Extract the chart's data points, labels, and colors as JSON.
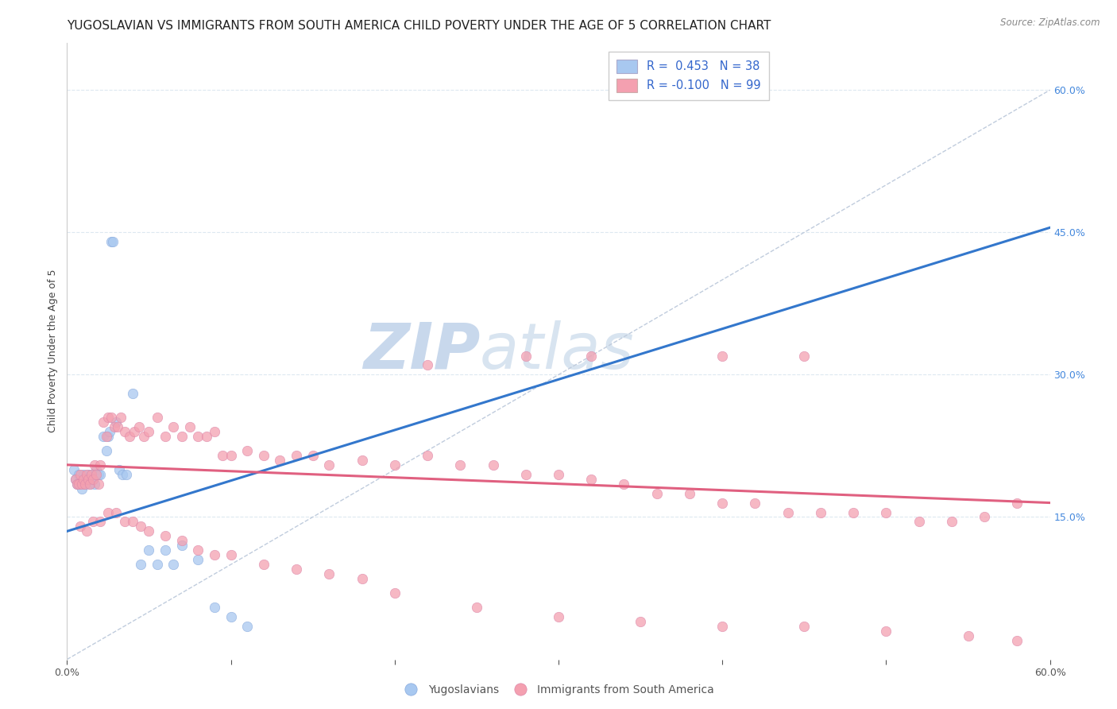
{
  "title": "YUGOSLAVIAN VS IMMIGRANTS FROM SOUTH AMERICA CHILD POVERTY UNDER THE AGE OF 5 CORRELATION CHART",
  "source": "Source: ZipAtlas.com",
  "ylabel": "Child Poverty Under the Age of 5",
  "y_ticks_right": [
    0.15,
    0.3,
    0.45,
    0.6
  ],
  "y_tick_labels_right": [
    "15.0%",
    "30.0%",
    "45.0%",
    "60.0%"
  ],
  "xlim": [
    0.0,
    0.6
  ],
  "ylim": [
    0.0,
    0.65
  ],
  "blue_R": 0.453,
  "blue_N": 38,
  "pink_R": -0.1,
  "pink_N": 99,
  "blue_color": "#a8c8f0",
  "pink_color": "#f4a0b0",
  "blue_line_color": "#3377cc",
  "pink_line_color": "#e06080",
  "bg_color": "#ffffff",
  "watermark_color": "#d8e8f5",
  "blue_line_x0": 0.0,
  "blue_line_y0": 0.135,
  "blue_line_x1": 0.6,
  "blue_line_y1": 0.455,
  "pink_line_x0": 0.0,
  "pink_line_y0": 0.205,
  "pink_line_x1": 0.6,
  "pink_line_y1": 0.165,
  "dash_line_x0": 0.0,
  "dash_line_y0": 0.0,
  "dash_line_x1": 0.6,
  "dash_line_y1": 0.6,
  "blue_scatter_x": [
    0.004,
    0.005,
    0.006,
    0.007,
    0.008,
    0.009,
    0.01,
    0.011,
    0.012,
    0.013,
    0.014,
    0.015,
    0.016,
    0.017,
    0.018,
    0.019,
    0.02,
    0.022,
    0.024,
    0.025,
    0.026,
    0.027,
    0.028,
    0.03,
    0.032,
    0.034,
    0.036,
    0.04,
    0.045,
    0.05,
    0.055,
    0.06,
    0.065,
    0.07,
    0.08,
    0.09,
    0.1,
    0.11
  ],
  "blue_scatter_y": [
    0.2,
    0.19,
    0.185,
    0.195,
    0.185,
    0.18,
    0.195,
    0.185,
    0.19,
    0.195,
    0.185,
    0.195,
    0.19,
    0.185,
    0.2,
    0.195,
    0.195,
    0.235,
    0.22,
    0.235,
    0.24,
    0.44,
    0.44,
    0.25,
    0.2,
    0.195,
    0.195,
    0.28,
    0.1,
    0.115,
    0.1,
    0.115,
    0.1,
    0.12,
    0.105,
    0.055,
    0.045,
    0.035
  ],
  "pink_scatter_x": [
    0.005,
    0.006,
    0.007,
    0.008,
    0.009,
    0.01,
    0.011,
    0.012,
    0.013,
    0.014,
    0.015,
    0.016,
    0.017,
    0.018,
    0.019,
    0.02,
    0.022,
    0.024,
    0.025,
    0.027,
    0.029,
    0.031,
    0.033,
    0.035,
    0.038,
    0.041,
    0.044,
    0.047,
    0.05,
    0.055,
    0.06,
    0.065,
    0.07,
    0.075,
    0.08,
    0.085,
    0.09,
    0.095,
    0.1,
    0.11,
    0.12,
    0.13,
    0.14,
    0.15,
    0.16,
    0.18,
    0.2,
    0.22,
    0.24,
    0.26,
    0.28,
    0.3,
    0.32,
    0.34,
    0.36,
    0.38,
    0.4,
    0.42,
    0.44,
    0.46,
    0.48,
    0.5,
    0.52,
    0.54,
    0.56,
    0.58,
    0.008,
    0.012,
    0.016,
    0.02,
    0.025,
    0.03,
    0.035,
    0.04,
    0.045,
    0.05,
    0.06,
    0.07,
    0.08,
    0.09,
    0.1,
    0.12,
    0.14,
    0.16,
    0.18,
    0.2,
    0.25,
    0.3,
    0.35,
    0.4,
    0.45,
    0.5,
    0.55,
    0.58,
    0.4,
    0.45,
    0.32,
    0.28,
    0.22
  ],
  "pink_scatter_y": [
    0.19,
    0.185,
    0.185,
    0.195,
    0.185,
    0.19,
    0.185,
    0.195,
    0.19,
    0.185,
    0.195,
    0.19,
    0.205,
    0.195,
    0.185,
    0.205,
    0.25,
    0.235,
    0.255,
    0.255,
    0.245,
    0.245,
    0.255,
    0.24,
    0.235,
    0.24,
    0.245,
    0.235,
    0.24,
    0.255,
    0.235,
    0.245,
    0.235,
    0.245,
    0.235,
    0.235,
    0.24,
    0.215,
    0.215,
    0.22,
    0.215,
    0.21,
    0.215,
    0.215,
    0.205,
    0.21,
    0.205,
    0.215,
    0.205,
    0.205,
    0.195,
    0.195,
    0.19,
    0.185,
    0.175,
    0.175,
    0.165,
    0.165,
    0.155,
    0.155,
    0.155,
    0.155,
    0.145,
    0.145,
    0.15,
    0.165,
    0.14,
    0.135,
    0.145,
    0.145,
    0.155,
    0.155,
    0.145,
    0.145,
    0.14,
    0.135,
    0.13,
    0.125,
    0.115,
    0.11,
    0.11,
    0.1,
    0.095,
    0.09,
    0.085,
    0.07,
    0.055,
    0.045,
    0.04,
    0.035,
    0.035,
    0.03,
    0.025,
    0.02,
    0.32,
    0.32,
    0.32,
    0.32,
    0.31
  ],
  "legend_labels": [
    "Yugoslavians",
    "Immigrants from South America"
  ],
  "grid_color": "#dde8f0",
  "title_fontsize": 11,
  "axis_fontsize": 9,
  "tick_fontsize": 9
}
